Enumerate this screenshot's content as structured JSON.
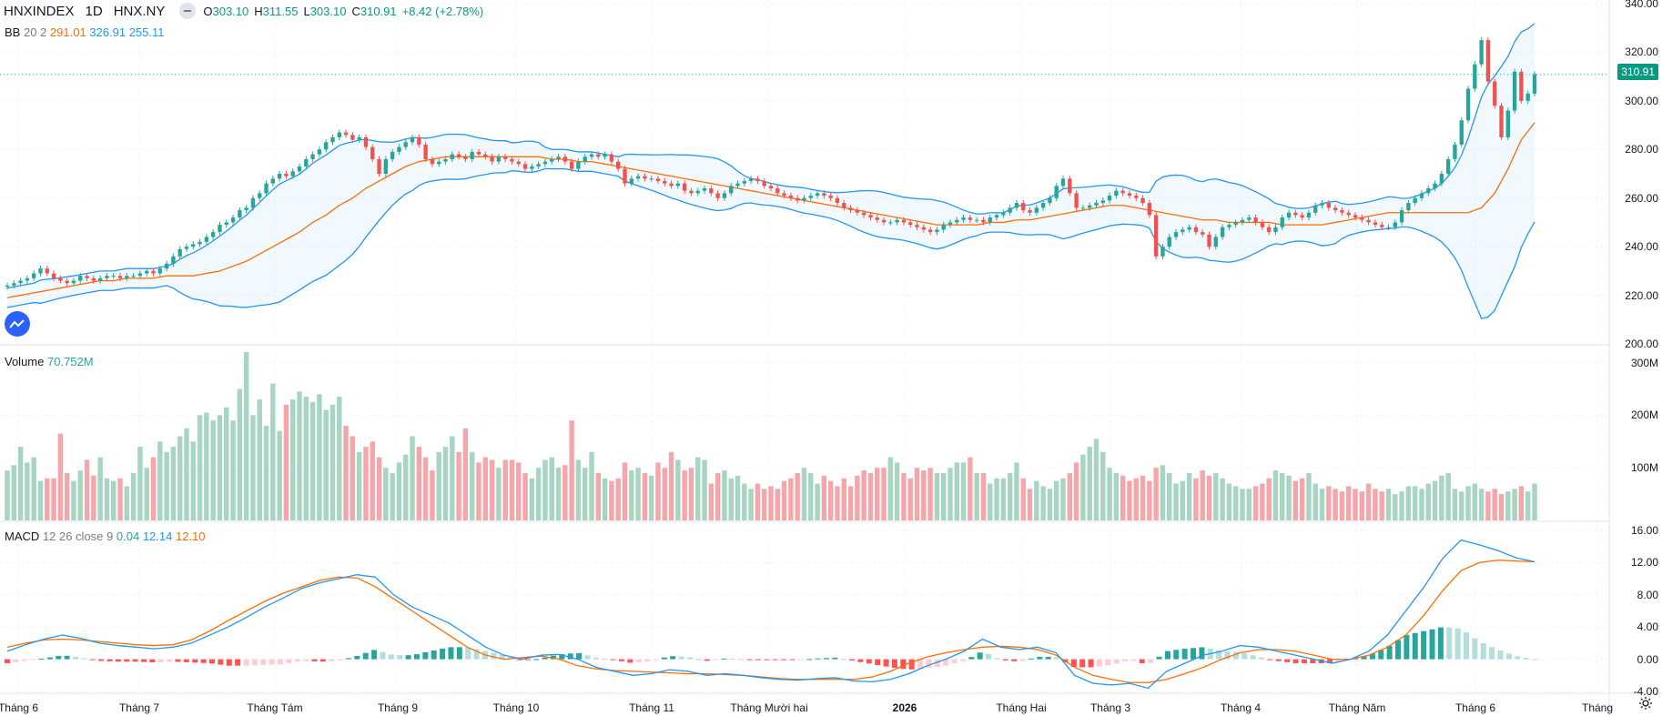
{
  "header": {
    "symbol": "HNXINDEX",
    "timeframe": "1D",
    "exchange": "HNX.NY",
    "open_label": "O",
    "open": "303.10",
    "high_label": "H",
    "high": "311.55",
    "low_label": "L",
    "low": "303.10",
    "close_label": "C",
    "close": "310.91",
    "change": "+8.42 (+2.78%)"
  },
  "bb_legend": {
    "name": "BB",
    "params": "20 2",
    "basis": "291.01",
    "upper": "326.91",
    "lower": "255.11"
  },
  "volume_legend": {
    "name": "Volume",
    "value": "70.752M"
  },
  "macd_legend": {
    "name": "MACD",
    "params": "12 26 close 9",
    "hist": "0.04",
    "macd": "12.14",
    "signal": "12.10"
  },
  "last_price_label": "310.91",
  "colors": {
    "up": "#26a69a",
    "down": "#ef5350",
    "basis": "#ff6d00",
    "band": "#2196f3",
    "macd": "#2196f3",
    "signal": "#ff6d00",
    "up_vol": "#a8d5c2",
    "down_vol": "#f4a7ab"
  },
  "chart_data": [
    {
      "type": "candlestick",
      "title": "HNXINDEX",
      "y_ticks": [
        "200.00",
        "220.00",
        "240.00",
        "260.00",
        "280.00",
        "300.00",
        "320.00",
        "340.00"
      ],
      "ylim": [
        200,
        340
      ],
      "x_ticks": [
        "Tháng 6",
        "Tháng 7",
        "Tháng Tám",
        "Tháng 9",
        "Tháng 10",
        "Tháng 11",
        "Tháng Mười hai",
        "2026",
        "Tháng Hai",
        "Tháng 3",
        "Tháng 4",
        "Tháng Năm",
        "Tháng 6",
        "Tháng"
      ],
      "close_series": [
        224,
        225,
        226,
        227,
        229,
        231,
        229,
        227,
        226,
        225,
        226,
        228,
        227,
        226,
        227,
        228,
        228,
        227,
        228,
        228,
        229,
        230,
        229,
        231,
        233,
        236,
        239,
        240,
        241,
        242,
        244,
        246,
        249,
        250,
        252,
        255,
        256,
        260,
        262,
        266,
        268,
        270,
        269,
        271,
        273,
        276,
        278,
        280,
        283,
        285,
        287,
        286,
        284,
        285,
        281,
        276,
        270,
        276,
        279,
        281,
        283,
        285,
        282,
        276,
        274,
        275,
        276,
        278,
        277,
        276,
        279,
        278,
        277,
        275,
        277,
        276,
        275,
        274,
        272,
        273,
        274,
        275,
        276,
        277,
        275,
        272,
        275,
        277,
        278,
        277,
        278,
        275,
        272,
        266,
        268,
        269,
        268,
        268,
        267,
        266,
        265,
        266,
        263,
        262,
        263,
        264,
        262,
        260,
        262,
        265,
        266,
        267,
        268,
        267,
        265,
        264,
        262,
        261,
        260,
        259,
        260,
        261,
        262,
        261,
        260,
        258,
        256,
        255,
        254,
        253,
        252,
        251,
        250,
        250,
        251,
        250,
        249,
        248,
        247,
        246,
        247,
        249,
        250,
        251,
        252,
        251,
        251,
        250,
        252,
        253,
        254,
        256,
        258,
        255,
        254,
        256,
        258,
        260,
        265,
        268,
        262,
        256,
        256,
        257,
        258,
        259,
        261,
        263,
        262,
        261,
        260,
        258,
        253,
        236,
        240,
        244,
        246,
        247,
        248,
        246,
        245,
        240,
        244,
        248,
        249,
        250,
        251,
        252,
        250,
        248,
        246,
        248,
        252,
        254,
        253,
        252,
        254,
        257,
        258,
        256,
        255,
        254,
        253,
        252,
        251,
        250,
        249,
        248,
        248,
        250,
        255,
        258,
        260,
        262,
        264,
        266,
        270,
        276,
        282,
        292,
        305,
        315,
        325,
        308,
        298,
        285,
        296,
        312,
        300,
        303,
        311
      ],
      "basis_series": [
        219,
        220,
        221,
        222,
        223,
        224,
        225,
        226,
        226,
        227,
        227,
        227,
        228,
        228,
        228,
        229,
        230,
        232,
        234,
        237,
        240,
        243,
        246,
        250,
        253,
        257,
        260,
        264,
        267,
        270,
        273,
        275,
        276,
        277,
        277,
        277,
        277,
        277,
        277,
        277,
        277,
        276,
        276,
        275,
        275,
        274,
        273,
        272,
        271,
        270,
        269,
        268,
        267,
        266,
        265,
        264,
        263,
        262,
        261,
        260,
        259,
        258,
        257,
        256,
        255,
        254,
        253,
        252,
        251,
        250,
        249,
        249,
        249,
        249,
        250,
        250,
        251,
        251,
        252,
        253,
        254,
        255,
        256,
        257,
        257,
        256,
        255,
        254,
        253,
        252,
        251,
        251,
        250,
        250,
        250,
        250,
        249,
        249,
        249,
        249,
        250,
        251,
        252,
        253,
        254,
        254,
        254,
        254,
        254,
        254,
        254,
        256,
        262,
        272,
        284,
        291
      ]
    },
    {
      "type": "bar",
      "title": "Volume",
      "y_ticks": [
        "100M",
        "200M",
        "300M"
      ],
      "ylim": [
        0,
        320
      ],
      "values_M": [
        95,
        105,
        140,
        110,
        120,
        75,
        80,
        80,
        165,
        90,
        75,
        95,
        115,
        85,
        120,
        80,
        75,
        80,
        65,
        90,
        140,
        100,
        120,
        150,
        130,
        140,
        160,
        175,
        150,
        200,
        205,
        190,
        200,
        215,
        190,
        250,
        320,
        200,
        230,
        180,
        260,
        170,
        220,
        230,
        245,
        235,
        225,
        240,
        210,
        220,
        235,
        180,
        160,
        130,
        140,
        150,
        120,
        100,
        90,
        110,
        125,
        160,
        140,
        120,
        95,
        130,
        140,
        160,
        130,
        175,
        130,
        110,
        120,
        115,
        100,
        115,
        115,
        110,
        90,
        80,
        100,
        115,
        120,
        100,
        105,
        190,
        115,
        100,
        130,
        90,
        80,
        75,
        80,
        110,
        95,
        100,
        90,
        85,
        110,
        100,
        130,
        115,
        95,
        100,
        120,
        115,
        70,
        90,
        95,
        80,
        85,
        70,
        60,
        70,
        60,
        65,
        60,
        75,
        80,
        90,
        100,
        90,
        70,
        85,
        75,
        65,
        80,
        65,
        85,
        95,
        90,
        100,
        100,
        120,
        110,
        90,
        80,
        100,
        95,
        100,
        90,
        90,
        100,
        110,
        110,
        120,
        90,
        90,
        70,
        80,
        80,
        90,
        110,
        80,
        60,
        75,
        65,
        60,
        75,
        80,
        90,
        110,
        125,
        140,
        155,
        130,
        100,
        90,
        85,
        75,
        80,
        85,
        75,
        100,
        105,
        90,
        70,
        75,
        90,
        80,
        95,
        85,
        90,
        80,
        70,
        65,
        60,
        60,
        65,
        70,
        80,
        95,
        90,
        85,
        75,
        80,
        90,
        70,
        60,
        65,
        60,
        55,
        65,
        60,
        55,
        70,
        60,
        55,
        60,
        50,
        55,
        65,
        65,
        60,
        70,
        75,
        85,
        90,
        60,
        55,
        65,
        70,
        60,
        55,
        60,
        50,
        55,
        60,
        65,
        55,
        70
      ]
    },
    {
      "type": "line",
      "title": "MACD",
      "y_ticks": [
        "-4.00",
        "0.00",
        "4.00",
        "8.00",
        "12.00",
        "16.00"
      ],
      "ylim": [
        -4,
        16
      ],
      "macd_series": [
        1.0,
        1.8,
        2.5,
        3.0,
        2.6,
        2.0,
        1.7,
        1.5,
        1.3,
        1.5,
        2.0,
        3.0,
        4.0,
        5.2,
        6.5,
        7.6,
        8.8,
        9.5,
        10.0,
        10.5,
        10.2,
        8.0,
        6.5,
        5.5,
        4.5,
        3.0,
        1.5,
        0.5,
        0.0,
        0.5,
        0.6,
        0.0,
        -1.0,
        -1.5,
        -2.0,
        -1.8,
        -1.3,
        -1.5,
        -2.0,
        -1.8,
        -2.0,
        -2.3,
        -2.5,
        -2.6,
        -2.4,
        -2.3,
        -2.7,
        -2.8,
        -2.5,
        -1.8,
        -0.8,
        0.0,
        1.0,
        2.5,
        1.5,
        1.2,
        1.5,
        0.8,
        -2.0,
        -3.0,
        -3.2,
        -3.0,
        -3.6,
        -1.5,
        -0.5,
        0.5,
        1.0,
        1.7,
        1.5,
        1.0,
        0.5,
        0.0,
        -0.5,
        0.0,
        1.0,
        3.0,
        6.0,
        9.0,
        12.5,
        14.8,
        14.2,
        13.5,
        12.6,
        12.1
      ],
      "signal_series": [
        1.5,
        2.0,
        2.4,
        2.5,
        2.4,
        2.2,
        2.0,
        1.8,
        1.7,
        1.8,
        2.4,
        3.5,
        4.8,
        6.0,
        7.2,
        8.2,
        9.0,
        9.8,
        10.2,
        10.1,
        9.0,
        7.5,
        6.0,
        4.5,
        3.0,
        1.5,
        0.5,
        0.0,
        0.2,
        0.4,
        0.0,
        -0.8,
        -1.2,
        -1.4,
        -1.5,
        -1.6,
        -1.7,
        -1.8,
        -1.8,
        -1.9,
        -2.0,
        -2.2,
        -2.4,
        -2.5,
        -2.5,
        -2.5,
        -2.5,
        -2.2,
        -1.5,
        -0.5,
        0.3,
        0.8,
        1.2,
        1.5,
        1.6,
        1.5,
        1.2,
        0.5,
        -1.0,
        -2.0,
        -2.5,
        -2.9,
        -2.9,
        -2.5,
        -1.8,
        -1.0,
        0.0,
        0.8,
        1.2,
        1.2,
        1.0,
        0.5,
        0.0,
        0.0,
        0.5,
        1.5,
        3.0,
        5.5,
        8.5,
        11.0,
        12.0,
        12.3,
        12.2,
        12.1
      ]
    }
  ]
}
